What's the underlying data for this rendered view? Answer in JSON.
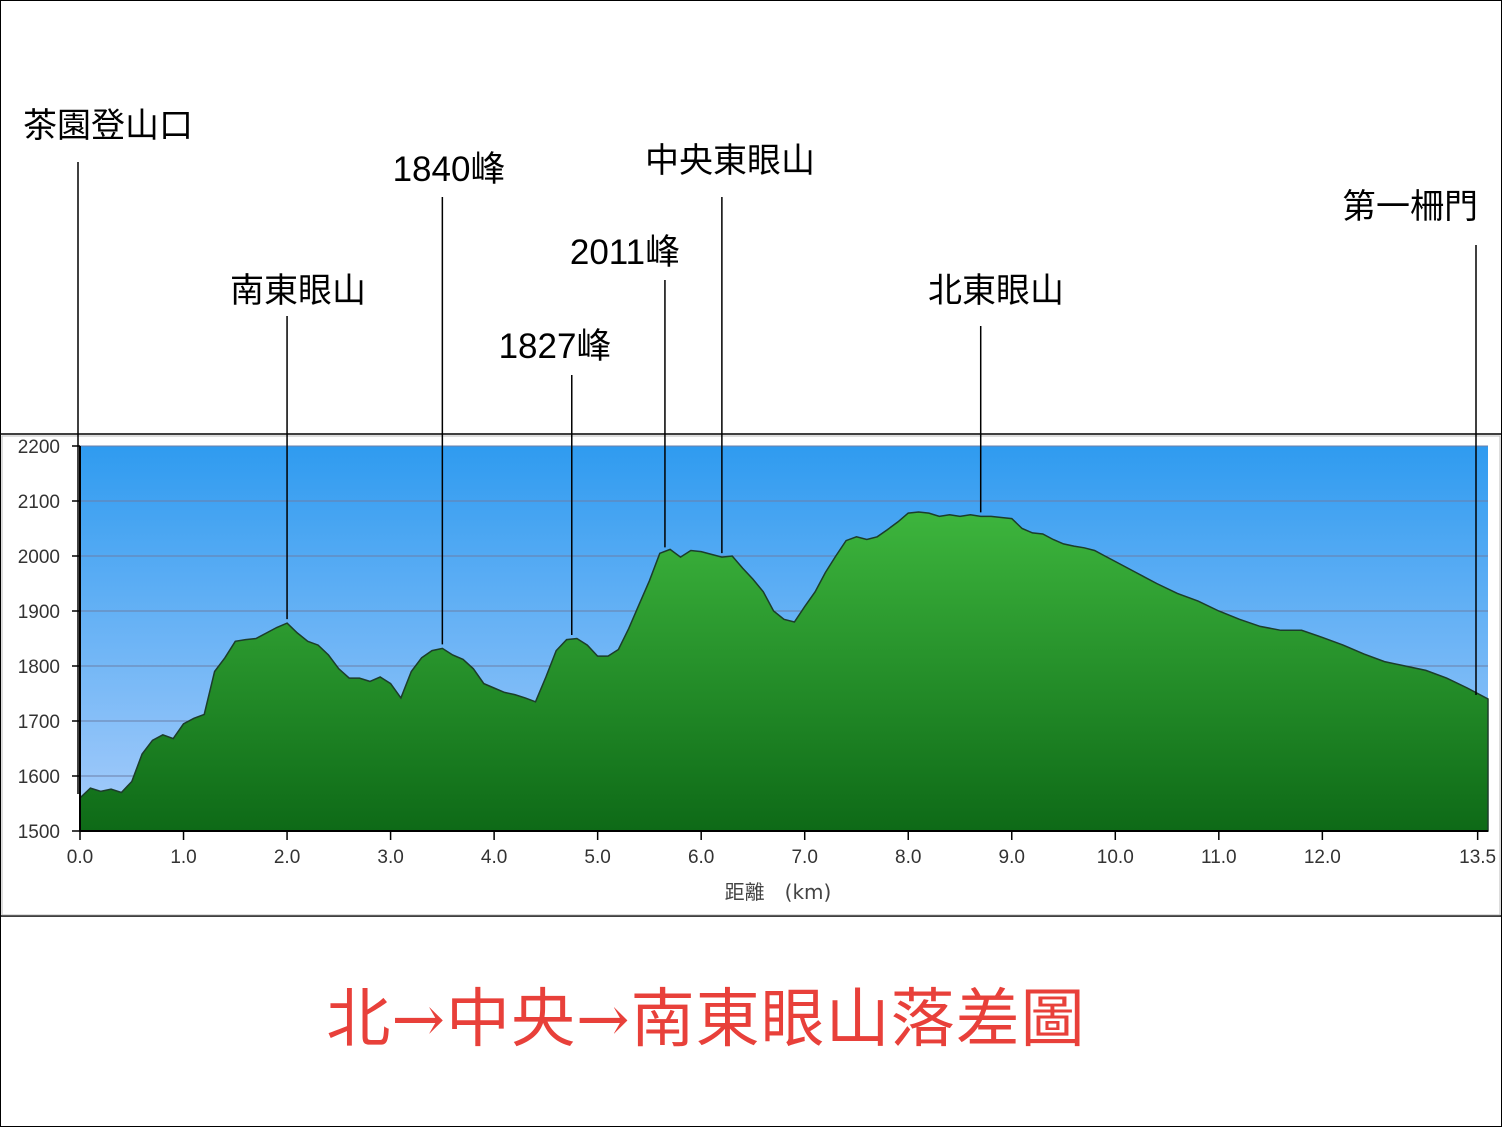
{
  "title": "北→中央→南東眼山落差圖",
  "colors": {
    "sky_top": "#2f9bf0",
    "sky_bottom": "#a9cdfb",
    "terrain_top": "#3db53d",
    "terrain_bottom": "#0e6a17",
    "title_red": "#e8403a"
  },
  "chart_data": {
    "type": "area",
    "xlabel": "距離　(km)",
    "ylabel": "",
    "xlim": [
      0,
      13.6
    ],
    "ylim": [
      1500,
      2200
    ],
    "grid": true,
    "yticks": [
      1500,
      1600,
      1700,
      1800,
      1900,
      2000,
      2100,
      2200
    ],
    "xtick_labels": [
      {
        "value": 0.0,
        "label": "0.0"
      },
      {
        "value": 1.0,
        "label": "1.0"
      },
      {
        "value": 2.0,
        "label": "2.0"
      },
      {
        "value": 3.0,
        "label": "3.0"
      },
      {
        "value": 4.0,
        "label": "4.0"
      },
      {
        "value": 5.0,
        "label": "5.0"
      },
      {
        "value": 6.0,
        "label": "6.0"
      },
      {
        "value": 7.0,
        "label": "7.0"
      },
      {
        "value": 8.0,
        "label": "8.0"
      },
      {
        "value": 9.0,
        "label": "9.0"
      },
      {
        "value": 10.0,
        "label": "10.0"
      },
      {
        "value": 11.0,
        "label": "11.0"
      },
      {
        "value": 12.0,
        "label": "12.0"
      },
      {
        "value": 13.5,
        "label": "13.5"
      }
    ],
    "profile": [
      [
        0.0,
        1560
      ],
      [
        0.1,
        1578
      ],
      [
        0.2,
        1572
      ],
      [
        0.3,
        1576
      ],
      [
        0.4,
        1570
      ],
      [
        0.5,
        1590
      ],
      [
        0.6,
        1640
      ],
      [
        0.7,
        1665
      ],
      [
        0.8,
        1675
      ],
      [
        0.9,
        1668
      ],
      [
        1.0,
        1695
      ],
      [
        1.1,
        1705
      ],
      [
        1.2,
        1712
      ],
      [
        1.3,
        1790
      ],
      [
        1.4,
        1815
      ],
      [
        1.5,
        1845
      ],
      [
        1.6,
        1848
      ],
      [
        1.7,
        1850
      ],
      [
        1.8,
        1860
      ],
      [
        1.9,
        1870
      ],
      [
        2.0,
        1878
      ],
      [
        2.1,
        1860
      ],
      [
        2.2,
        1845
      ],
      [
        2.3,
        1838
      ],
      [
        2.4,
        1820
      ],
      [
        2.5,
        1795
      ],
      [
        2.6,
        1778
      ],
      [
        2.7,
        1778
      ],
      [
        2.8,
        1772
      ],
      [
        2.9,
        1780
      ],
      [
        3.0,
        1768
      ],
      [
        3.1,
        1742
      ],
      [
        3.2,
        1790
      ],
      [
        3.3,
        1815
      ],
      [
        3.4,
        1828
      ],
      [
        3.5,
        1832
      ],
      [
        3.6,
        1820
      ],
      [
        3.7,
        1812
      ],
      [
        3.8,
        1795
      ],
      [
        3.9,
        1768
      ],
      [
        4.0,
        1760
      ],
      [
        4.1,
        1752
      ],
      [
        4.2,
        1748
      ],
      [
        4.3,
        1742
      ],
      [
        4.4,
        1735
      ],
      [
        4.5,
        1780
      ],
      [
        4.6,
        1828
      ],
      [
        4.7,
        1848
      ],
      [
        4.8,
        1850
      ],
      [
        4.9,
        1838
      ],
      [
        5.0,
        1818
      ],
      [
        5.1,
        1818
      ],
      [
        5.2,
        1830
      ],
      [
        5.3,
        1868
      ],
      [
        5.4,
        1912
      ],
      [
        5.5,
        1955
      ],
      [
        5.6,
        2005
      ],
      [
        5.7,
        2012
      ],
      [
        5.8,
        1998
      ],
      [
        5.9,
        2010
      ],
      [
        6.0,
        2008
      ],
      [
        6.1,
        2003
      ],
      [
        6.2,
        1998
      ],
      [
        6.3,
        2000
      ],
      [
        6.4,
        1978
      ],
      [
        6.5,
        1958
      ],
      [
        6.6,
        1935
      ],
      [
        6.7,
        1900
      ],
      [
        6.8,
        1885
      ],
      [
        6.9,
        1880
      ],
      [
        7.0,
        1908
      ],
      [
        7.1,
        1935
      ],
      [
        7.2,
        1970
      ],
      [
        7.3,
        2000
      ],
      [
        7.4,
        2028
      ],
      [
        7.5,
        2035
      ],
      [
        7.6,
        2030
      ],
      [
        7.7,
        2035
      ],
      [
        7.8,
        2048
      ],
      [
        7.9,
        2062
      ],
      [
        8.0,
        2078
      ],
      [
        8.1,
        2080
      ],
      [
        8.2,
        2078
      ],
      [
        8.3,
        2072
      ],
      [
        8.4,
        2075
      ],
      [
        8.5,
        2072
      ],
      [
        8.6,
        2075
      ],
      [
        8.7,
        2072
      ],
      [
        8.8,
        2072
      ],
      [
        8.9,
        2070
      ],
      [
        9.0,
        2068
      ],
      [
        9.1,
        2050
      ],
      [
        9.2,
        2042
      ],
      [
        9.3,
        2040
      ],
      [
        9.4,
        2030
      ],
      [
        9.5,
        2022
      ],
      [
        9.6,
        2018
      ],
      [
        9.7,
        2015
      ],
      [
        9.8,
        2010
      ],
      [
        9.9,
        2000
      ],
      [
        10.0,
        1990
      ],
      [
        10.2,
        1970
      ],
      [
        10.4,
        1950
      ],
      [
        10.6,
        1932
      ],
      [
        10.8,
        1918
      ],
      [
        11.0,
        1900
      ],
      [
        11.2,
        1885
      ],
      [
        11.4,
        1872
      ],
      [
        11.6,
        1865
      ],
      [
        11.8,
        1865
      ],
      [
        12.0,
        1852
      ],
      [
        12.2,
        1838
      ],
      [
        12.4,
        1822
      ],
      [
        12.6,
        1808
      ],
      [
        12.8,
        1800
      ],
      [
        13.0,
        1792
      ],
      [
        13.2,
        1778
      ],
      [
        13.4,
        1760
      ],
      [
        13.6,
        1740
      ]
    ],
    "annotations": [
      {
        "label": "茶園登山口",
        "x": 0.0,
        "numeric": false
      },
      {
        "label": "南東眼山",
        "x": 2.0,
        "numeric": false
      },
      {
        "label": "1840峰",
        "x": 3.5,
        "numeric": true
      },
      {
        "label": "1827峰",
        "x": 4.75,
        "numeric": true
      },
      {
        "label": "2011峰",
        "x": 5.65,
        "numeric": true
      },
      {
        "label": "中央東眼山",
        "x": 6.2,
        "numeric": false
      },
      {
        "label": "北東眼山",
        "x": 8.7,
        "numeric": false
      },
      {
        "label": "第一柵門",
        "x": 13.6,
        "numeric": false
      }
    ]
  }
}
